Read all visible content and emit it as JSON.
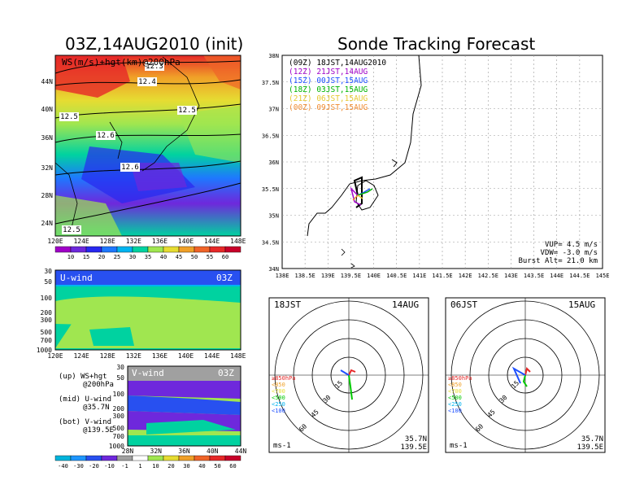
{
  "left_title": "03Z,14AUG2010 (init)",
  "right_title": "Sonde Tracking Forecast",
  "map_panel": {
    "label": "WS(m/s)+hgt(km)@200hPa",
    "lon_ticks": [
      "120E",
      "124E",
      "128E",
      "132E",
      "136E",
      "140E",
      "144E",
      "148E"
    ],
    "lat_ticks": [
      "44N",
      "40N",
      "36N",
      "32N",
      "28N",
      "24N"
    ],
    "contour_labels": [
      "12.3",
      "12.4",
      "12.5",
      "12.5",
      "12.6",
      "12.6",
      "12.5"
    ],
    "colorbar_labels": [
      "10",
      "15",
      "20",
      "25",
      "30",
      "35",
      "40",
      "45",
      "50",
      "55",
      "60"
    ],
    "colorbar_colors": [
      "#a000c8",
      "#6e28dc",
      "#2828f0",
      "#1e78ff",
      "#00b4f0",
      "#00d2a0",
      "#a0e650",
      "#e6dc32",
      "#f0a028",
      "#f06428",
      "#e62828",
      "#c8002a"
    ]
  },
  "u_panel": {
    "label": "U-wind",
    "time": "03Z",
    "p_ticks": [
      "30",
      "50",
      "100",
      "200",
      "300",
      "500",
      "700",
      "1000"
    ],
    "lon_ticks": [
      "120E",
      "124E",
      "128E",
      "132E",
      "136E",
      "140E",
      "144E",
      "148E"
    ]
  },
  "v_panel": {
    "label": "V-wind",
    "time": "03Z",
    "p_ticks": [
      "30",
      "50",
      "100",
      "200",
      "300",
      "500",
      "700",
      "1000"
    ],
    "lat_ticks": [
      "28N",
      "32N",
      "36N",
      "40N",
      "44N"
    ]
  },
  "legend_notes": [
    {
      "title": "(up) WS+hgt",
      "sub": "@200hPa"
    },
    {
      "title": "(mid) U-wind",
      "sub": "@35.7N"
    },
    {
      "title": "(bot) V-wind",
      "sub": "@139.5E"
    }
  ],
  "bottom_colorbar": {
    "labels": [
      "-40",
      "-30",
      "-20",
      "-10",
      "-1",
      "1",
      "10",
      "20",
      "30",
      "40",
      "50",
      "60"
    ],
    "colors": [
      "#00b4dc",
      "#1e96ff",
      "#2850f0",
      "#6e28dc",
      "#a0a0a0",
      "#ffffff",
      "#a0e650",
      "#e6dc32",
      "#f0a028",
      "#f06428",
      "#e62828",
      "#c8002a"
    ]
  },
  "track": {
    "lon_ticks": [
      "138E",
      "138.5E",
      "139E",
      "139.5E",
      "140E",
      "140.5E",
      "141E",
      "141.5E",
      "142E",
      "142.5E",
      "143E",
      "143.5E",
      "144E",
      "144.5E",
      "145E"
    ],
    "lat_ticks": [
      "38N",
      "37.5N",
      "37N",
      "36.5N",
      "36N",
      "35.5N",
      "35N",
      "34.5N",
      "34N"
    ],
    "legend": [
      {
        "code": "(09Z)",
        "jst": "18JST,14AUG2010",
        "color": "#000000"
      },
      {
        "code": "(12Z)",
        "jst": "21JST,14AUG",
        "color": "#a000c8"
      },
      {
        "code": "(15Z)",
        "jst": "00JST,15AUG",
        "color": "#1e50ff"
      },
      {
        "code": "(18Z)",
        "jst": "03JST,15AUG",
        "color": "#00b400"
      },
      {
        "code": "(21Z)",
        "jst": "06JST,15AUG",
        "color": "#e6c832"
      },
      {
        "code": "(00Z)",
        "jst": "09JST,15AUG",
        "color": "#f08c32"
      }
    ],
    "params": [
      "VUP= 4.5 m/s",
      "VDW= -3.0 m/s",
      "Burst Alt= 21.0 km"
    ]
  },
  "hodographs": [
    {
      "time": "18JST",
      "date": "14AUG",
      "ring_labels": [
        "15",
        "30",
        "45",
        "60"
      ],
      "unit": "ms-1",
      "loc_lat": "35.7N",
      "loc_lon": "139.5E"
    },
    {
      "time": "06JST",
      "date": "15AUG",
      "ring_labels": [
        "15",
        "30",
        "45",
        "60"
      ],
      "unit": "ms-1",
      "loc_lat": "35.7N",
      "loc_lon": "139.5E"
    }
  ],
  "hodo_levels": [
    {
      "label": "≥850hPa",
      "color": "#e62828"
    },
    {
      "label": "<850",
      "color": "#f0a028"
    },
    {
      "label": "<700",
      "color": "#e6dc32"
    },
    {
      "label": "<500",
      "color": "#00c800"
    },
    {
      "label": "<250",
      "color": "#00b4f0"
    },
    {
      "label": "<100",
      "color": "#1e50ff"
    }
  ],
  "chart_data": [
    {
      "type": "heatmap",
      "title": "WS(m/s)+hgt(km)@200hPa",
      "xlim": [
        "120E",
        "150E"
      ],
      "ylim": [
        "22N",
        "47N"
      ]
    },
    {
      "type": "heatmap",
      "title": "U-wind",
      "yscale": "log pressure",
      "ylim": [
        1000,
        30
      ]
    },
    {
      "type": "heatmap",
      "title": "V-wind",
      "xlim": [
        "28N",
        "44N"
      ],
      "yscale": "log pressure",
      "ylim": [
        1000,
        30
      ]
    },
    {
      "type": "line",
      "title": "Sonde Tracking Forecast",
      "xlim": [
        138,
        145
      ],
      "ylim": [
        34,
        38
      ],
      "launch": {
        "x": 139.5,
        "y": 35.5
      }
    },
    {
      "type": "line",
      "title": "18JST 14AUG hodograph",
      "rings": [
        15,
        30,
        45,
        60
      ]
    },
    {
      "type": "line",
      "title": "06JST 15AUG hodograph",
      "rings": [
        15,
        30,
        45,
        60
      ]
    }
  ]
}
